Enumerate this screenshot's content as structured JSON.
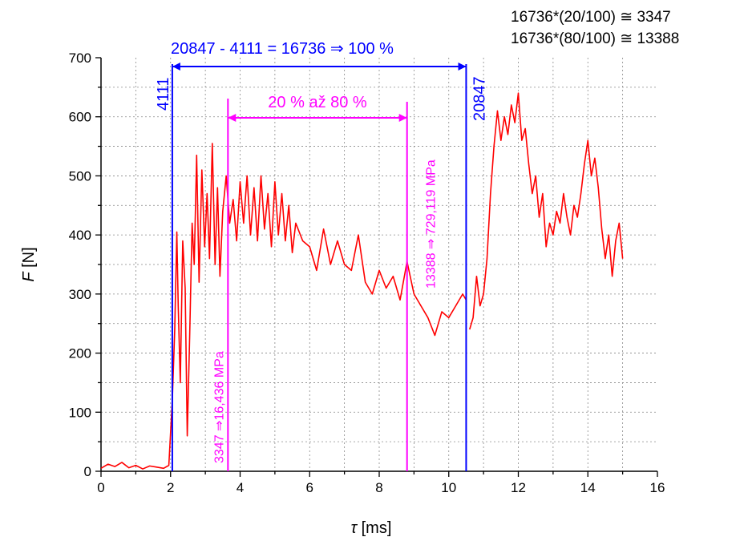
{
  "chart_data": {
    "type": "line",
    "xlabel_symbol": "τ",
    "xlabel_unit": "[ms]",
    "ylabel_symbol": "F",
    "ylabel_unit": "[N]",
    "xlim": [
      0,
      16
    ],
    "ylim": [
      0,
      700
    ],
    "xticks": [
      0,
      2,
      4,
      6,
      8,
      10,
      12,
      14,
      16
    ],
    "yticks": [
      0,
      100,
      200,
      300,
      400,
      500,
      600,
      700
    ],
    "grid": true,
    "series": [
      {
        "color": "#ff0000",
        "x": [
          0.0,
          0.2,
          0.4,
          0.6,
          0.8,
          1.0,
          1.2,
          1.4,
          1.6,
          1.8,
          1.95,
          2.05,
          2.12,
          2.18,
          2.22,
          2.28,
          2.35,
          2.42,
          2.48,
          2.55,
          2.62,
          2.68,
          2.75,
          2.82,
          2.9,
          2.98,
          3.05,
          3.12,
          3.2,
          3.28,
          3.35,
          3.42,
          3.5,
          3.6,
          3.7,
          3.8,
          3.9,
          4.0,
          4.1,
          4.2,
          4.3,
          4.4,
          4.5,
          4.6,
          4.7,
          4.8,
          4.9,
          5.0,
          5.1,
          5.2,
          5.3,
          5.4,
          5.5,
          5.6,
          5.8,
          6.0,
          6.2,
          6.4,
          6.6,
          6.8,
          7.0,
          7.2,
          7.4,
          7.6,
          7.8,
          8.0,
          8.2,
          8.4,
          8.6,
          8.8,
          9.0,
          9.2,
          9.4,
          9.6,
          9.8,
          10.0,
          10.2,
          10.4,
          10.5,
          10.6,
          10.7,
          10.8,
          10.9,
          11.0,
          11.1,
          11.2,
          11.3,
          11.4,
          11.5,
          11.6,
          11.7,
          11.8,
          11.9,
          12.0,
          12.1,
          12.2,
          12.3,
          12.4,
          12.5,
          12.6,
          12.7,
          12.8,
          12.9,
          13.0,
          13.1,
          13.2,
          13.3,
          13.4,
          13.5,
          13.6,
          13.7,
          13.8,
          13.9,
          14.0,
          14.1,
          14.2,
          14.3,
          14.4,
          14.5,
          14.6,
          14.7,
          14.8,
          14.9,
          15.0
        ],
        "y": [
          5,
          12,
          8,
          15,
          6,
          10,
          4,
          9,
          7,
          5,
          10,
          120,
          240,
          405,
          280,
          150,
          390,
          310,
          60,
          230,
          420,
          350,
          535,
          320,
          510,
          380,
          470,
          360,
          555,
          350,
          480,
          330,
          440,
          500,
          420,
          460,
          390,
          490,
          420,
          500,
          400,
          480,
          390,
          500,
          410,
          470,
          380,
          490,
          400,
          470,
          390,
          450,
          370,
          420,
          390,
          380,
          340,
          410,
          350,
          390,
          350,
          340,
          400,
          320,
          300,
          340,
          310,
          330,
          290,
          355,
          300,
          280,
          260,
          230,
          270,
          260,
          280,
          300,
          290,
          240,
          260,
          330,
          280,
          300,
          360,
          470,
          550,
          610,
          560,
          600,
          570,
          620,
          590,
          640,
          560,
          580,
          520,
          470,
          500,
          430,
          470,
          380,
          420,
          400,
          440,
          420,
          470,
          430,
          400,
          450,
          430,
          470,
          520,
          560,
          500,
          530,
          480,
          410,
          360,
          400,
          330,
          390,
          420,
          360
        ],
        "break_after_x": 10.5
      }
    ],
    "annotations": {
      "x_4111": 2.05,
      "x_20847": 10.5,
      "x_3347": 3.65,
      "x_13388": 8.8,
      "top_label": "20847 - 4111 = 16736 ⇒ 100 %",
      "mid_label": "20 % až 80 %",
      "label_4111": "4111",
      "label_20847": "20847",
      "label_3347": "3347  ⇒16,436 MPa",
      "label_13388": "13388  ⇒ 729,119 MPa",
      "blue_color": "#0000ff",
      "magenta_color": "#ff00ff"
    },
    "corner_notes": [
      "16736*(20/100) ≅ 3347",
      "16736*(80/100) ≅ 13388"
    ]
  }
}
